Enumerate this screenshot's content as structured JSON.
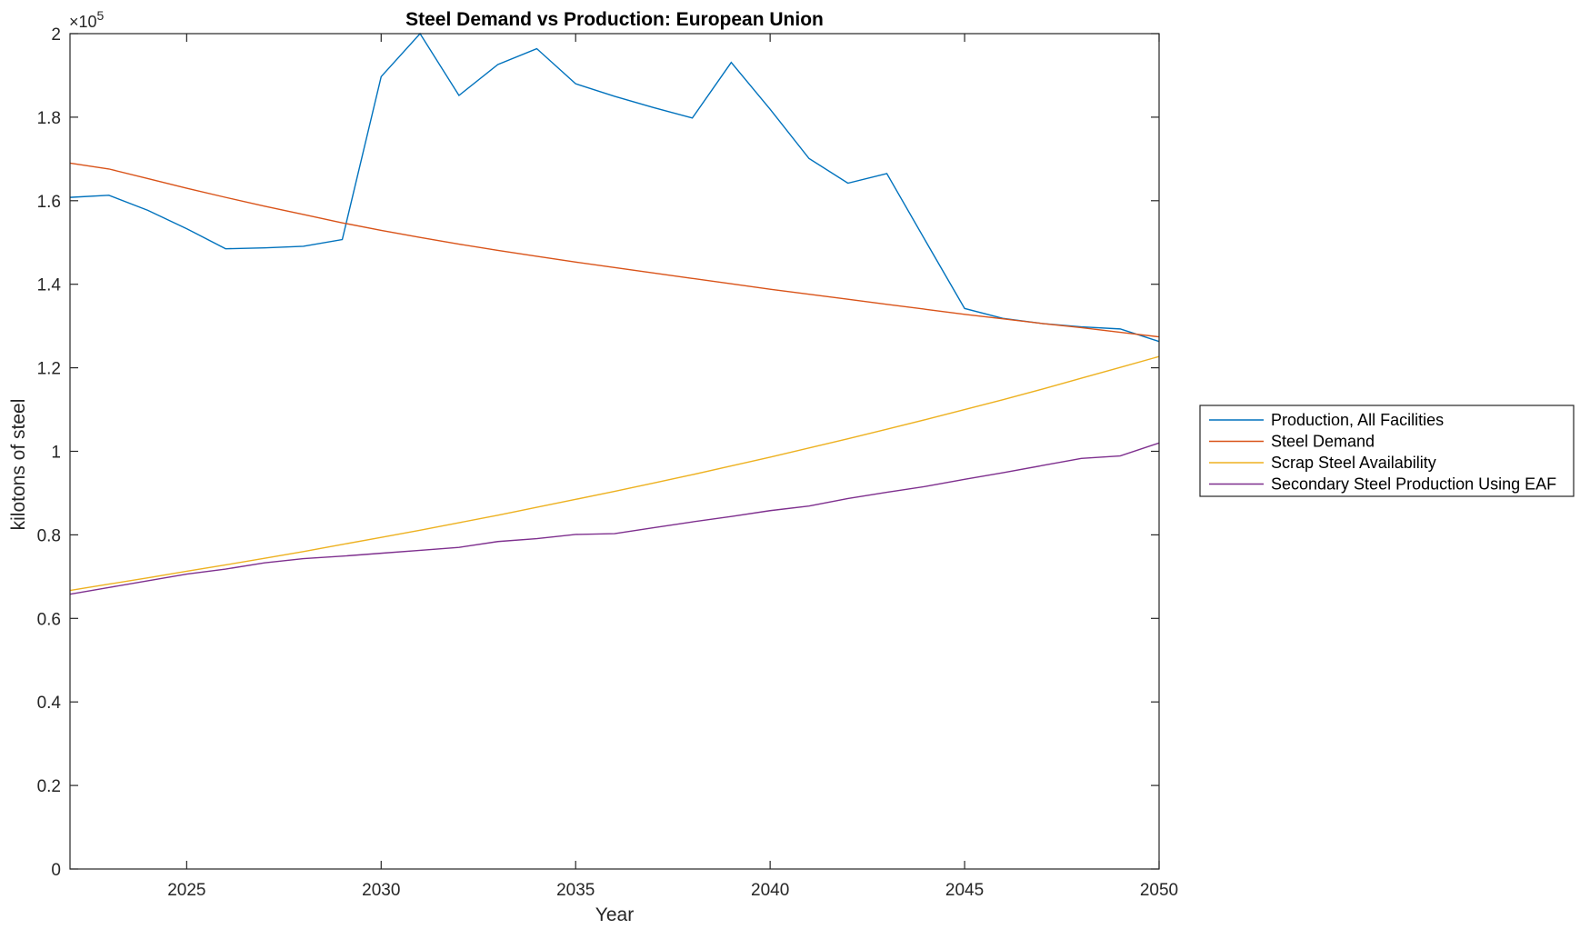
{
  "chart_data": {
    "type": "line",
    "title": "Steel Demand vs Production: European Union",
    "xlabel": "Year",
    "ylabel": "kilotons of steel",
    "xlim": [
      2022,
      2050
    ],
    "ylim": [
      0,
      200000
    ],
    "y_exponent_label": "×10",
    "y_exponent_power": "5",
    "xticks": [
      2025,
      2030,
      2035,
      2040,
      2045,
      2050
    ],
    "xtick_labels": [
      "2025",
      "2030",
      "2035",
      "2040",
      "2045",
      "2050"
    ],
    "yticks": [
      0,
      20000,
      40000,
      60000,
      80000,
      100000,
      120000,
      140000,
      160000,
      180000,
      200000
    ],
    "ytick_labels": [
      "0",
      "0.2",
      "0.4",
      "0.6",
      "0.8",
      "1",
      "1.2",
      "1.4",
      "1.6",
      "1.8",
      "2"
    ],
    "grid": false,
    "legend_position": "outside-right",
    "x": [
      2022,
      2023,
      2024,
      2025,
      2026,
      2027,
      2028,
      2029,
      2030,
      2031,
      2032,
      2033,
      2034,
      2035,
      2036,
      2037,
      2038,
      2039,
      2040,
      2041,
      2042,
      2043,
      2044,
      2045,
      2046,
      2047,
      2048,
      2049,
      2050
    ],
    "series": [
      {
        "name": "Production, All Facilities",
        "color": "#0072BD",
        "values": [
          160800,
          161300,
          157700,
          153300,
          148500,
          148700,
          149100,
          150700,
          189700,
          200000,
          185200,
          192600,
          196400,
          188000,
          185000,
          182300,
          179800,
          193100,
          181900,
          170100,
          164200,
          166500,
          150300,
          134200,
          131800,
          130600,
          129800,
          129300,
          126300
        ]
      },
      {
        "name": "Steel Demand",
        "color": "#D95319",
        "values": [
          169000,
          167600,
          165300,
          163000,
          160800,
          158700,
          156700,
          154700,
          152900,
          151200,
          149600,
          148100,
          146700,
          145300,
          144000,
          142700,
          141400,
          140100,
          138800,
          137600,
          136400,
          135200,
          134000,
          132800,
          131700,
          130600,
          129600,
          128500,
          127400
        ]
      },
      {
        "name": "Scrap Steel Availability",
        "color": "#EDB120",
        "values": [
          66700,
          68200,
          69700,
          71300,
          72800,
          74400,
          76000,
          77700,
          79400,
          81100,
          82900,
          84700,
          86600,
          88500,
          90400,
          92400,
          94400,
          96500,
          98600,
          100800,
          103000,
          105300,
          107600,
          110000,
          112400,
          114900,
          117500,
          120100,
          122700
        ]
      },
      {
        "name": "Secondary Steel Production Using EAF",
        "color": "#7E2F8E",
        "values": [
          65800,
          67400,
          69000,
          70600,
          71800,
          73300,
          74300,
          74900,
          75600,
          76300,
          77000,
          78400,
          79100,
          80100,
          80300,
          81700,
          83100,
          84400,
          85800,
          86900,
          88700,
          90200,
          91600,
          93300,
          94900,
          96600,
          98300,
          98900,
          102000
        ]
      }
    ]
  }
}
